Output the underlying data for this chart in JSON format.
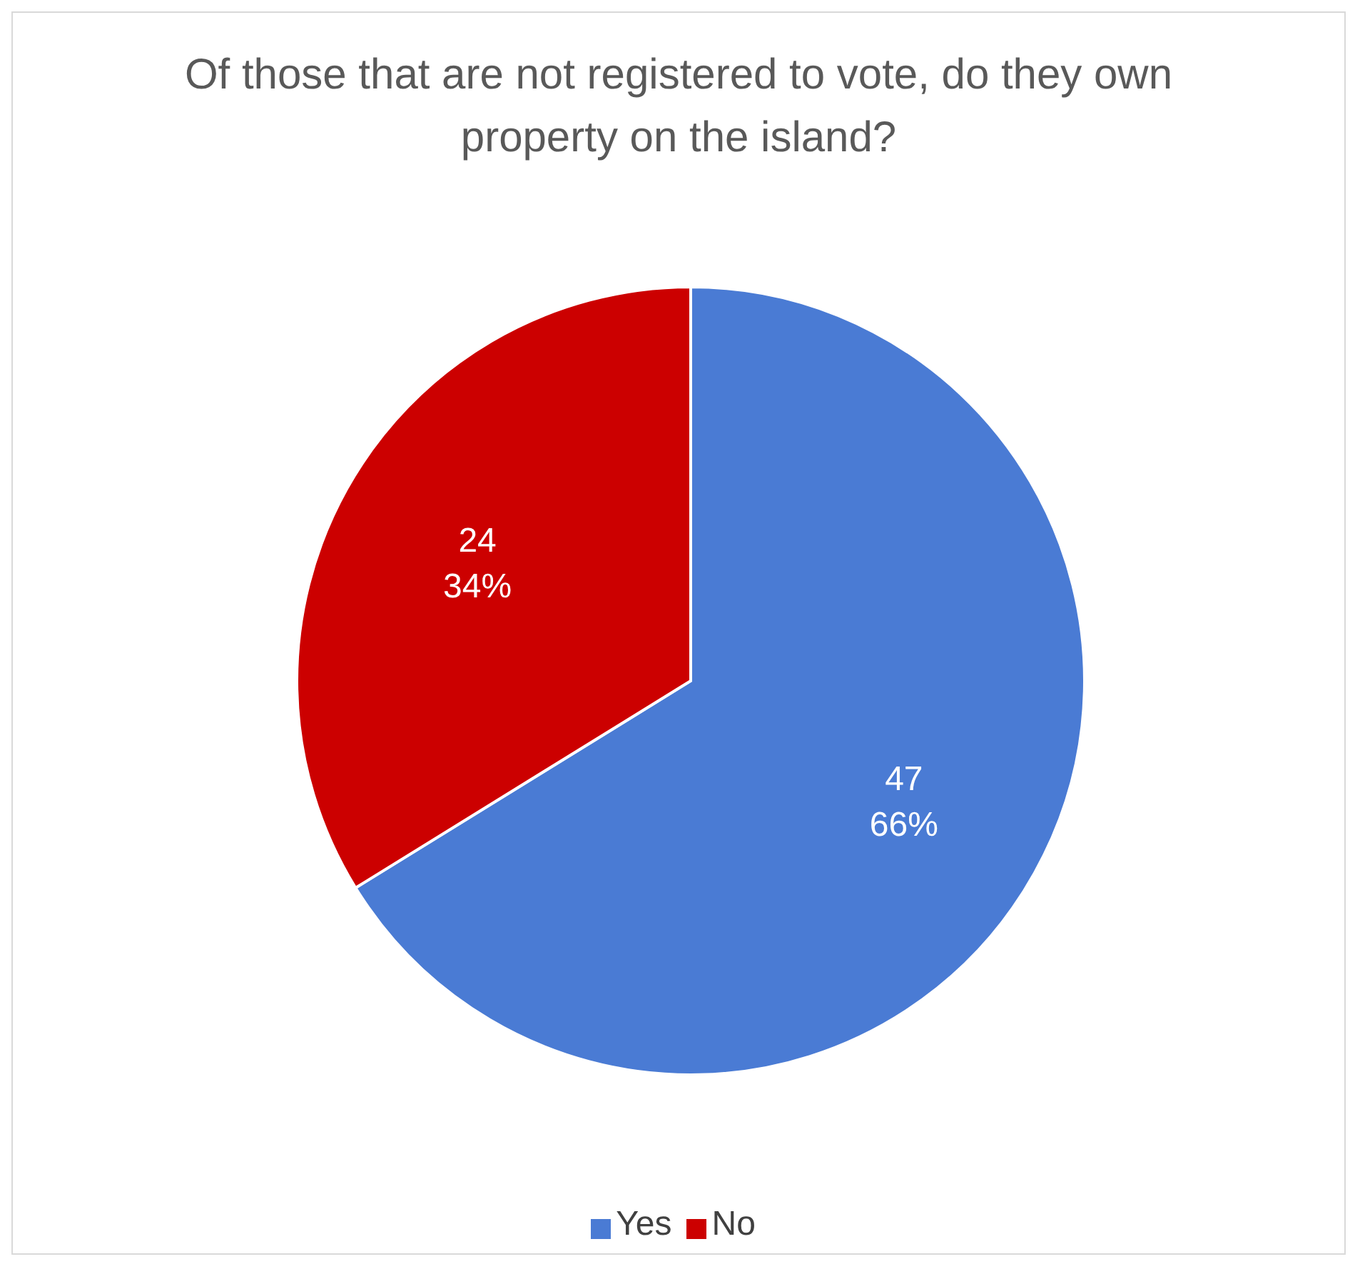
{
  "chart_data": {
    "type": "pie",
    "title": "Of those that are not registered to vote, do they own property on the island?",
    "categories": [
      "Yes",
      "No"
    ],
    "values": [
      47,
      24
    ],
    "colors": [
      "#4a7bd4",
      "#cc0000"
    ],
    "value_labels": [
      "47\n66%",
      "24\n34%"
    ],
    "legend": "bottom"
  }
}
